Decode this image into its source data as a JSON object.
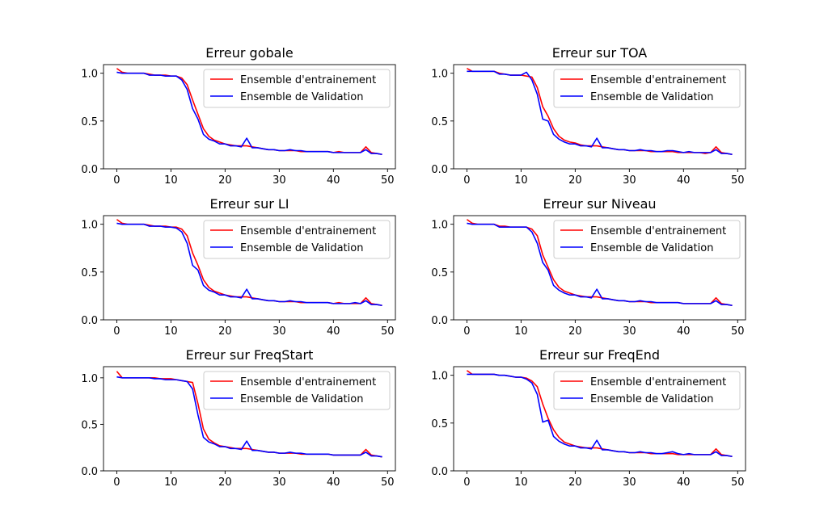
{
  "chart_data": [
    {
      "type": "line",
      "title": "Erreur gobale",
      "xlim": [
        -2.45,
        51.45
      ],
      "ylim": [
        0,
        1.09
      ],
      "xticks": [
        0,
        10,
        20,
        30,
        40,
        50
      ],
      "yticks": [
        0.0,
        0.5,
        1.0
      ],
      "xtick_labels": [
        "0",
        "10",
        "20",
        "30",
        "40",
        "50"
      ],
      "ytick_labels": [
        "0.0",
        "0.5",
        "1.0"
      ],
      "legend_position": "upper right",
      "x": [
        0,
        1,
        2,
        3,
        4,
        5,
        6,
        7,
        8,
        9,
        10,
        11,
        12,
        13,
        14,
        15,
        16,
        17,
        18,
        19,
        20,
        21,
        22,
        23,
        24,
        25,
        26,
        27,
        28,
        29,
        30,
        31,
        32,
        33,
        34,
        35,
        36,
        37,
        38,
        39,
        40,
        41,
        42,
        43,
        44,
        45,
        46,
        47,
        48,
        49
      ],
      "series": [
        {
          "name": "Ensemble d'entrainement",
          "color": "#ff0000",
          "values": [
            1.05,
            1.01,
            1.0,
            1.0,
            1.0,
            1.0,
            0.99,
            0.98,
            0.98,
            0.98,
            0.97,
            0.97,
            0.95,
            0.88,
            0.72,
            0.57,
            0.42,
            0.34,
            0.3,
            0.28,
            0.26,
            0.25,
            0.24,
            0.24,
            0.24,
            0.23,
            0.22,
            0.21,
            0.2,
            0.2,
            0.19,
            0.19,
            0.19,
            0.19,
            0.18,
            0.18,
            0.18,
            0.18,
            0.18,
            0.18,
            0.17,
            0.18,
            0.17,
            0.17,
            0.17,
            0.17,
            0.23,
            0.17,
            0.16,
            0.15
          ]
        },
        {
          "name": "Ensemble de Validation",
          "color": "#0000ff",
          "values": [
            1.01,
            1.0,
            1.0,
            1.0,
            1.0,
            1.0,
            0.98,
            0.98,
            0.98,
            0.97,
            0.97,
            0.97,
            0.93,
            0.83,
            0.63,
            0.52,
            0.36,
            0.31,
            0.29,
            0.26,
            0.26,
            0.24,
            0.24,
            0.23,
            0.32,
            0.22,
            0.22,
            0.21,
            0.2,
            0.2,
            0.19,
            0.19,
            0.2,
            0.19,
            0.19,
            0.18,
            0.18,
            0.18,
            0.18,
            0.18,
            0.17,
            0.17,
            0.17,
            0.17,
            0.17,
            0.17,
            0.2,
            0.16,
            0.16,
            0.15
          ]
        }
      ]
    },
    {
      "type": "line",
      "title": "Erreur sur TOA",
      "xlim": [
        -2.45,
        51.45
      ],
      "ylim": [
        0,
        1.09
      ],
      "xticks": [
        0,
        10,
        20,
        30,
        40,
        50
      ],
      "yticks": [
        0.0,
        0.5,
        1.0
      ],
      "xtick_labels": [
        "0",
        "10",
        "20",
        "30",
        "40",
        "50"
      ],
      "ytick_labels": [
        "0.0",
        "0.5",
        "1.0"
      ],
      "legend_position": "upper right",
      "x": [
        0,
        1,
        2,
        3,
        4,
        5,
        6,
        7,
        8,
        9,
        10,
        11,
        12,
        13,
        14,
        15,
        16,
        17,
        18,
        19,
        20,
        21,
        22,
        23,
        24,
        25,
        26,
        27,
        28,
        29,
        30,
        31,
        32,
        33,
        34,
        35,
        36,
        37,
        38,
        39,
        40,
        41,
        42,
        43,
        44,
        45,
        46,
        47,
        48,
        49
      ],
      "series": [
        {
          "name": "Ensemble d'entrainement",
          "color": "#ff0000",
          "values": [
            1.05,
            1.02,
            1.02,
            1.02,
            1.02,
            1.02,
            1.0,
            0.99,
            0.98,
            0.98,
            0.98,
            0.97,
            0.96,
            0.85,
            0.65,
            0.55,
            0.42,
            0.34,
            0.3,
            0.28,
            0.27,
            0.25,
            0.24,
            0.24,
            0.24,
            0.23,
            0.22,
            0.21,
            0.2,
            0.2,
            0.19,
            0.19,
            0.19,
            0.19,
            0.18,
            0.18,
            0.18,
            0.18,
            0.18,
            0.17,
            0.17,
            0.17,
            0.17,
            0.17,
            0.16,
            0.17,
            0.23,
            0.17,
            0.16,
            0.15
          ]
        },
        {
          "name": "Ensemble de Validation",
          "color": "#0000ff",
          "values": [
            1.02,
            1.02,
            1.02,
            1.02,
            1.02,
            1.02,
            0.99,
            0.99,
            0.98,
            0.98,
            0.98,
            1.01,
            0.93,
            0.78,
            0.52,
            0.5,
            0.36,
            0.31,
            0.28,
            0.26,
            0.26,
            0.24,
            0.24,
            0.23,
            0.32,
            0.22,
            0.22,
            0.21,
            0.2,
            0.2,
            0.19,
            0.19,
            0.2,
            0.19,
            0.19,
            0.18,
            0.18,
            0.19,
            0.19,
            0.18,
            0.17,
            0.18,
            0.17,
            0.17,
            0.17,
            0.17,
            0.2,
            0.16,
            0.16,
            0.15
          ]
        }
      ]
    },
    {
      "type": "line",
      "title": "Erreur sur LI",
      "xlim": [
        -2.45,
        51.45
      ],
      "ylim": [
        0,
        1.09
      ],
      "xticks": [
        0,
        10,
        20,
        30,
        40,
        50
      ],
      "yticks": [
        0.0,
        0.5,
        1.0
      ],
      "xtick_labels": [
        "0",
        "10",
        "20",
        "30",
        "40",
        "50"
      ],
      "ytick_labels": [
        "0.0",
        "0.5",
        "1.0"
      ],
      "legend_position": "upper right",
      "x": [
        0,
        1,
        2,
        3,
        4,
        5,
        6,
        7,
        8,
        9,
        10,
        11,
        12,
        13,
        14,
        15,
        16,
        17,
        18,
        19,
        20,
        21,
        22,
        23,
        24,
        25,
        26,
        27,
        28,
        29,
        30,
        31,
        32,
        33,
        34,
        35,
        36,
        37,
        38,
        39,
        40,
        41,
        42,
        43,
        44,
        45,
        46,
        47,
        48,
        49
      ],
      "series": [
        {
          "name": "Ensemble d'entrainement",
          "color": "#ff0000",
          "values": [
            1.05,
            1.01,
            1.0,
            1.0,
            1.0,
            1.0,
            0.99,
            0.98,
            0.98,
            0.98,
            0.97,
            0.97,
            0.95,
            0.88,
            0.7,
            0.57,
            0.42,
            0.34,
            0.3,
            0.28,
            0.26,
            0.25,
            0.24,
            0.24,
            0.24,
            0.23,
            0.22,
            0.21,
            0.2,
            0.2,
            0.19,
            0.19,
            0.19,
            0.19,
            0.18,
            0.18,
            0.18,
            0.18,
            0.18,
            0.18,
            0.17,
            0.18,
            0.17,
            0.17,
            0.17,
            0.17,
            0.23,
            0.17,
            0.16,
            0.15
          ]
        },
        {
          "name": "Ensemble de Validation",
          "color": "#0000ff",
          "values": [
            1.01,
            1.0,
            1.0,
            1.0,
            1.0,
            1.0,
            0.98,
            0.98,
            0.98,
            0.97,
            0.97,
            0.96,
            0.92,
            0.8,
            0.57,
            0.52,
            0.36,
            0.31,
            0.29,
            0.26,
            0.26,
            0.24,
            0.24,
            0.23,
            0.32,
            0.22,
            0.22,
            0.21,
            0.2,
            0.2,
            0.19,
            0.19,
            0.2,
            0.19,
            0.19,
            0.18,
            0.18,
            0.18,
            0.18,
            0.18,
            0.17,
            0.17,
            0.17,
            0.17,
            0.18,
            0.17,
            0.2,
            0.16,
            0.16,
            0.15
          ]
        }
      ]
    },
    {
      "type": "line",
      "title": "Erreur sur Niveau",
      "xlim": [
        -2.45,
        51.45
      ],
      "ylim": [
        0,
        1.09
      ],
      "xticks": [
        0,
        10,
        20,
        30,
        40,
        50
      ],
      "yticks": [
        0.0,
        0.5,
        1.0
      ],
      "xtick_labels": [
        "0",
        "10",
        "20",
        "30",
        "40",
        "50"
      ],
      "ytick_labels": [
        "0.0",
        "0.5",
        "1.0"
      ],
      "legend_position": "upper right",
      "x": [
        0,
        1,
        2,
        3,
        4,
        5,
        6,
        7,
        8,
        9,
        10,
        11,
        12,
        13,
        14,
        15,
        16,
        17,
        18,
        19,
        20,
        21,
        22,
        23,
        24,
        25,
        26,
        27,
        28,
        29,
        30,
        31,
        32,
        33,
        34,
        35,
        36,
        37,
        38,
        39,
        40,
        41,
        42,
        43,
        44,
        45,
        46,
        47,
        48,
        49
      ],
      "series": [
        {
          "name": "Ensemble d'entrainement",
          "color": "#ff0000",
          "values": [
            1.05,
            1.01,
            1.0,
            1.0,
            1.0,
            1.0,
            0.98,
            0.98,
            0.97,
            0.97,
            0.97,
            0.97,
            0.95,
            0.88,
            0.68,
            0.55,
            0.42,
            0.34,
            0.3,
            0.28,
            0.26,
            0.25,
            0.24,
            0.24,
            0.24,
            0.23,
            0.22,
            0.21,
            0.2,
            0.2,
            0.19,
            0.19,
            0.19,
            0.19,
            0.18,
            0.18,
            0.18,
            0.18,
            0.18,
            0.18,
            0.17,
            0.17,
            0.17,
            0.17,
            0.17,
            0.17,
            0.23,
            0.17,
            0.16,
            0.15
          ]
        },
        {
          "name": "Ensemble de Validation",
          "color": "#0000ff",
          "values": [
            1.01,
            1.0,
            1.0,
            1.0,
            1.0,
            1.0,
            0.97,
            0.97,
            0.97,
            0.97,
            0.97,
            0.97,
            0.92,
            0.8,
            0.6,
            0.52,
            0.36,
            0.31,
            0.28,
            0.26,
            0.26,
            0.24,
            0.24,
            0.23,
            0.32,
            0.22,
            0.22,
            0.21,
            0.2,
            0.2,
            0.19,
            0.19,
            0.2,
            0.19,
            0.19,
            0.18,
            0.18,
            0.18,
            0.18,
            0.18,
            0.17,
            0.17,
            0.17,
            0.17,
            0.17,
            0.17,
            0.2,
            0.16,
            0.16,
            0.15
          ]
        }
      ]
    },
    {
      "type": "line",
      "title": "Erreur sur FreqStart",
      "xlim": [
        -2.45,
        51.45
      ],
      "ylim": [
        0,
        1.12
      ],
      "xticks": [
        0,
        10,
        20,
        30,
        40,
        50
      ],
      "yticks": [
        0.0,
        0.5,
        1.0
      ],
      "xtick_labels": [
        "0",
        "10",
        "20",
        "30",
        "40",
        "50"
      ],
      "ytick_labels": [
        "0.0",
        "0.5",
        "1.0"
      ],
      "legend_position": "upper right",
      "x": [
        0,
        1,
        2,
        3,
        4,
        5,
        6,
        7,
        8,
        9,
        10,
        11,
        12,
        13,
        14,
        15,
        16,
        17,
        18,
        19,
        20,
        21,
        22,
        23,
        24,
        25,
        26,
        27,
        28,
        29,
        30,
        31,
        32,
        33,
        34,
        35,
        36,
        37,
        38,
        39,
        40,
        41,
        42,
        43,
        44,
        45,
        46,
        47,
        48,
        49
      ],
      "series": [
        {
          "name": "Ensemble d'entrainement",
          "color": "#ff0000",
          "values": [
            1.07,
            1.0,
            1.0,
            1.0,
            1.0,
            1.0,
            1.0,
            1.0,
            0.99,
            0.99,
            0.99,
            0.98,
            0.97,
            0.96,
            0.95,
            0.72,
            0.45,
            0.34,
            0.3,
            0.27,
            0.26,
            0.25,
            0.24,
            0.24,
            0.24,
            0.23,
            0.22,
            0.21,
            0.2,
            0.2,
            0.19,
            0.19,
            0.19,
            0.19,
            0.18,
            0.18,
            0.18,
            0.18,
            0.18,
            0.18,
            0.17,
            0.17,
            0.17,
            0.17,
            0.17,
            0.17,
            0.23,
            0.17,
            0.16,
            0.15
          ]
        },
        {
          "name": "Ensemble de Validation",
          "color": "#0000ff",
          "values": [
            1.01,
            1.0,
            1.0,
            1.0,
            1.0,
            1.0,
            1.0,
            0.99,
            0.99,
            0.98,
            0.98,
            0.98,
            0.97,
            0.96,
            0.88,
            0.6,
            0.36,
            0.31,
            0.29,
            0.26,
            0.26,
            0.24,
            0.24,
            0.23,
            0.32,
            0.22,
            0.22,
            0.21,
            0.2,
            0.2,
            0.19,
            0.19,
            0.2,
            0.19,
            0.19,
            0.18,
            0.18,
            0.18,
            0.18,
            0.18,
            0.17,
            0.17,
            0.17,
            0.17,
            0.17,
            0.17,
            0.2,
            0.16,
            0.16,
            0.15
          ]
        }
      ]
    },
    {
      "type": "line",
      "title": "Erreur sur FreqEnd",
      "xlim": [
        -2.45,
        51.45
      ],
      "ylim": [
        0,
        1.09
      ],
      "xticks": [
        0,
        10,
        20,
        30,
        40,
        50
      ],
      "yticks": [
        0.0,
        0.5,
        1.0
      ],
      "xtick_labels": [
        "0",
        "10",
        "20",
        "30",
        "40",
        "50"
      ],
      "ytick_labels": [
        "0.0",
        "0.5",
        "1.0"
      ],
      "legend_position": "upper right",
      "x": [
        0,
        1,
        2,
        3,
        4,
        5,
        6,
        7,
        8,
        9,
        10,
        11,
        12,
        13,
        14,
        15,
        16,
        17,
        18,
        19,
        20,
        21,
        22,
        23,
        24,
        25,
        26,
        27,
        28,
        29,
        30,
        31,
        32,
        33,
        34,
        35,
        36,
        37,
        38,
        39,
        40,
        41,
        42,
        43,
        44,
        45,
        46,
        47,
        48,
        49
      ],
      "series": [
        {
          "name": "Ensemble d'entrainement",
          "color": "#ff0000",
          "values": [
            1.05,
            1.01,
            1.01,
            1.01,
            1.01,
            1.01,
            1.0,
            1.0,
            0.99,
            0.98,
            0.98,
            0.97,
            0.94,
            0.88,
            0.7,
            0.55,
            0.43,
            0.35,
            0.3,
            0.28,
            0.26,
            0.25,
            0.24,
            0.24,
            0.24,
            0.23,
            0.22,
            0.21,
            0.2,
            0.2,
            0.19,
            0.19,
            0.19,
            0.19,
            0.18,
            0.18,
            0.18,
            0.18,
            0.18,
            0.17,
            0.17,
            0.17,
            0.17,
            0.17,
            0.17,
            0.17,
            0.23,
            0.17,
            0.16,
            0.15
          ]
        },
        {
          "name": "Ensemble de Validation",
          "color": "#0000ff",
          "values": [
            1.01,
            1.01,
            1.01,
            1.01,
            1.01,
            1.01,
            1.0,
            1.0,
            0.99,
            0.98,
            0.98,
            0.96,
            0.92,
            0.8,
            0.51,
            0.53,
            0.36,
            0.31,
            0.28,
            0.26,
            0.26,
            0.24,
            0.24,
            0.23,
            0.32,
            0.22,
            0.22,
            0.21,
            0.2,
            0.2,
            0.19,
            0.19,
            0.2,
            0.19,
            0.19,
            0.18,
            0.18,
            0.19,
            0.2,
            0.18,
            0.17,
            0.18,
            0.17,
            0.17,
            0.17,
            0.17,
            0.2,
            0.16,
            0.16,
            0.15
          ]
        }
      ]
    }
  ]
}
